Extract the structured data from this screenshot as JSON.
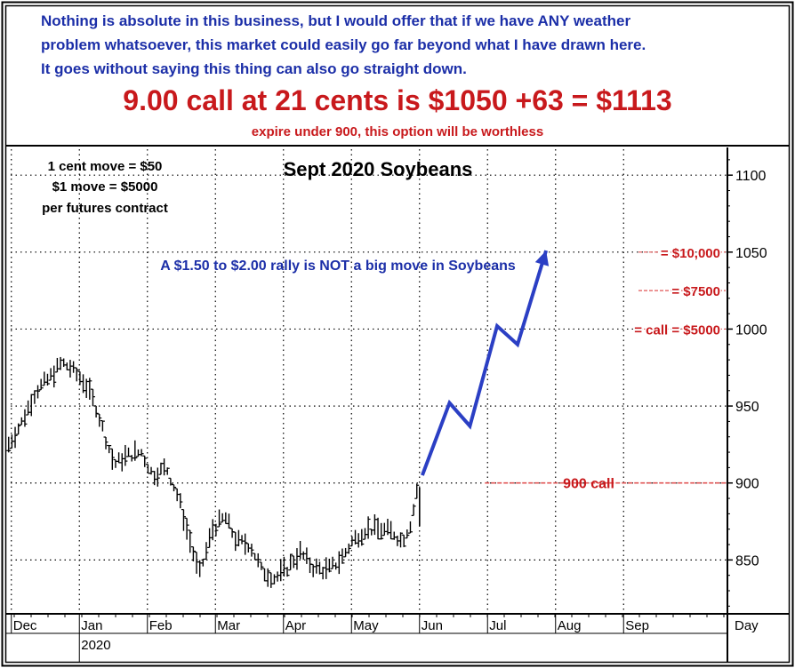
{
  "header": {
    "note_lines": [
      "Nothing is absolute in this business, but I would offer that if we have ANY weather",
      "problem whatsoever, this market could easily go far beyond what I have drawn here.",
      "It goes without saying this thing can also go straight down."
    ],
    "headline": "9.00 call at 21 cents is $1050 +63 = $1113",
    "subline": "expire under 900, this option will be worthless"
  },
  "colors": {
    "blue_text": "#1c2fa8",
    "red_text": "#c8191c",
    "arrow": "#2b3fc4",
    "price_bars": "#000000"
  },
  "chart_data": {
    "type": "bar",
    "subtype": "ohlc-price-bars",
    "title": "Sept 2020 Soybeans",
    "xlabel": "Day",
    "ylabel": "",
    "x_ticks": [
      "Dec",
      "Jan",
      "Feb",
      "Mar",
      "Apr",
      "May",
      "Jun",
      "Jul",
      "Aug",
      "Sep"
    ],
    "x_ticks_secondary": [
      {
        "at": "Jan",
        "label": "2020"
      }
    ],
    "y_ticks": [
      850,
      900,
      950,
      1000,
      1050,
      1100
    ],
    "ylim": [
      815,
      1118
    ],
    "y_axis_side": "right",
    "grid": true,
    "corner_note": [
      "1 cent move = $50",
      "$1 move = $5000",
      "per futures contract"
    ],
    "annotation_main": "A $1.50 to $2.00 rally is NOT a big move in Soybeans",
    "strike": {
      "value": 900,
      "label": "900 call",
      "from_month": "Jul"
    },
    "payoff_labels": [
      {
        "label": "$10,000",
        "y": 1050
      },
      {
        "label": "$7500",
        "y": 1025
      },
      {
        "label": "call = $5000",
        "y": 1000
      }
    ],
    "series": [
      {
        "kind": "price",
        "points": [
          {
            "m": -0.5,
            "v": 925
          },
          {
            "m": -0.3,
            "v": 940
          },
          {
            "m": -0.1,
            "v": 960
          },
          {
            "m": 0.1,
            "v": 968
          },
          {
            "m": 0.28,
            "v": 978
          },
          {
            "m": 0.4,
            "v": 975
          },
          {
            "m": 0.62,
            "v": 965
          },
          {
            "m": 0.78,
            "v": 950
          },
          {
            "m": 0.92,
            "v": 930
          },
          {
            "m": 1.05,
            "v": 912
          },
          {
            "m": 1.25,
            "v": 918
          },
          {
            "m": 1.45,
            "v": 920
          },
          {
            "m": 1.62,
            "v": 905
          },
          {
            "m": 1.82,
            "v": 910
          },
          {
            "m": 2.0,
            "v": 890
          },
          {
            "m": 2.12,
            "v": 870
          },
          {
            "m": 2.3,
            "v": 840
          },
          {
            "m": 2.5,
            "v": 870
          },
          {
            "m": 2.68,
            "v": 878
          },
          {
            "m": 2.85,
            "v": 862
          },
          {
            "m": 3.05,
            "v": 860
          },
          {
            "m": 3.22,
            "v": 843
          },
          {
            "m": 3.42,
            "v": 838
          },
          {
            "m": 3.6,
            "v": 845
          },
          {
            "m": 3.78,
            "v": 855
          },
          {
            "m": 3.98,
            "v": 845
          },
          {
            "m": 4.18,
            "v": 843
          },
          {
            "m": 4.38,
            "v": 850
          },
          {
            "m": 4.55,
            "v": 862
          },
          {
            "m": 4.75,
            "v": 870
          },
          {
            "m": 4.95,
            "v": 870
          },
          {
            "m": 5.15,
            "v": 868
          },
          {
            "m": 5.28,
            "v": 862
          },
          {
            "m": 5.42,
            "v": 875
          },
          {
            "m": 5.5,
            "v": 895
          }
        ]
      },
      {
        "kind": "projection",
        "points": [
          {
            "m": 5.58,
            "v": 905
          },
          {
            "m": 5.98,
            "v": 952
          },
          {
            "m": 6.28,
            "v": 937
          },
          {
            "m": 6.68,
            "v": 1002
          },
          {
            "m": 6.98,
            "v": 990
          },
          {
            "m": 7.4,
            "v": 1051
          }
        ]
      }
    ]
  }
}
